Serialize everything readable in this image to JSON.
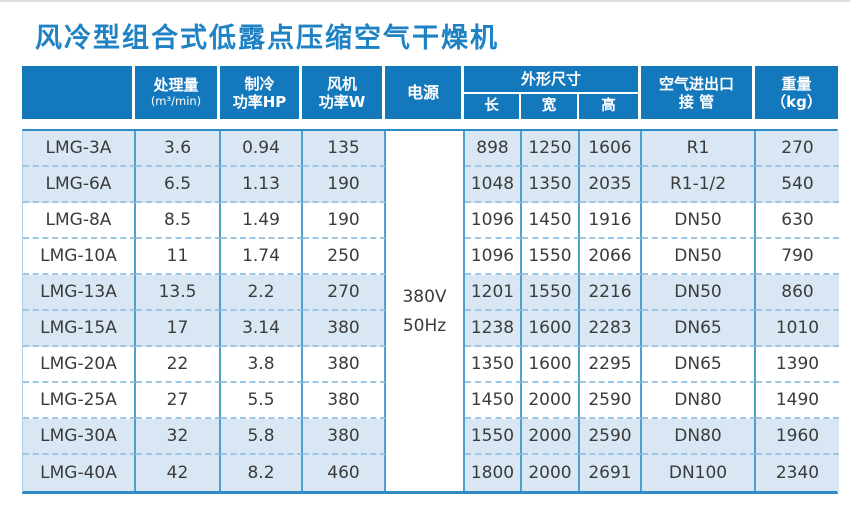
{
  "title": "风冷型组合式低露点压缩空气干燥机",
  "colors": {
    "title_blue": "#1e82c4",
    "header_blue": "#1478bd",
    "row_shaded": "#d9e7f4",
    "grid_line_blue": "#4f9fd3",
    "dashed_line_blue": "#9cc6e4",
    "body_border_blue": "#2e8bc7",
    "body_text": "#3b3b3b"
  },
  "header": {
    "model": "",
    "flow_line1": "处理量",
    "flow_line2": "(m³/min)",
    "cooling_line1": "制冷",
    "cooling_line2": "功率HP",
    "fan_line1": "风机",
    "fan_line2": "功率W",
    "power": "电源",
    "dimensions": "外形尺寸",
    "dim_length": "长",
    "dim_width": "宽",
    "dim_height": "高",
    "pipe_line1": "空气进出口",
    "pipe_line2": "接 管",
    "weight_line1": "重量",
    "weight_line2": "（kg）"
  },
  "power_supply": {
    "line1": "380V",
    "line2": "50Hz"
  },
  "rows": [
    {
      "model": "LMG-3A",
      "flow": "3.6",
      "cooling": "0.94",
      "fan": "135",
      "length": "898",
      "width": "1250",
      "height": "1606",
      "pipe": "R1",
      "weight": "270",
      "shaded": true
    },
    {
      "model": "LMG-6A",
      "flow": "6.5",
      "cooling": "1.13",
      "fan": "190",
      "length": "1048",
      "width": "1350",
      "height": "2035",
      "pipe": "R1-1/2",
      "weight": "540",
      "shaded": true
    },
    {
      "model": "LMG-8A",
      "flow": "8.5",
      "cooling": "1.49",
      "fan": "190",
      "length": "1096",
      "width": "1450",
      "height": "1916",
      "pipe": "DN50",
      "weight": "630",
      "shaded": false
    },
    {
      "model": "LMG-10A",
      "flow": "11",
      "cooling": "1.74",
      "fan": "250",
      "length": "1096",
      "width": "1550",
      "height": "2066",
      "pipe": "DN50",
      "weight": "790",
      "shaded": false
    },
    {
      "model": "LMG-13A",
      "flow": "13.5",
      "cooling": "2.2",
      "fan": "270",
      "length": "1201",
      "width": "1550",
      "height": "2216",
      "pipe": "DN50",
      "weight": "860",
      "shaded": true
    },
    {
      "model": "LMG-15A",
      "flow": "17",
      "cooling": "3.14",
      "fan": "380",
      "length": "1238",
      "width": "1600",
      "height": "2283",
      "pipe": "DN65",
      "weight": "1010",
      "shaded": true
    },
    {
      "model": "LMG-20A",
      "flow": "22",
      "cooling": "3.8",
      "fan": "380",
      "length": "1350",
      "width": "1600",
      "height": "2295",
      "pipe": "DN65",
      "weight": "1390",
      "shaded": false
    },
    {
      "model": "LMG-25A",
      "flow": "27",
      "cooling": "5.5",
      "fan": "380",
      "length": "1450",
      "width": "2000",
      "height": "2590",
      "pipe": "DN80",
      "weight": "1490",
      "shaded": false
    },
    {
      "model": "LMG-30A",
      "flow": "32",
      "cooling": "5.8",
      "fan": "380",
      "length": "1550",
      "width": "2000",
      "height": "2590",
      "pipe": "DN80",
      "weight": "1960",
      "shaded": true
    },
    {
      "model": "LMG-40A",
      "flow": "42",
      "cooling": "8.2",
      "fan": "460",
      "length": "1800",
      "width": "2000",
      "height": "2691",
      "pipe": "DN100",
      "weight": "2340",
      "shaded": true
    }
  ]
}
